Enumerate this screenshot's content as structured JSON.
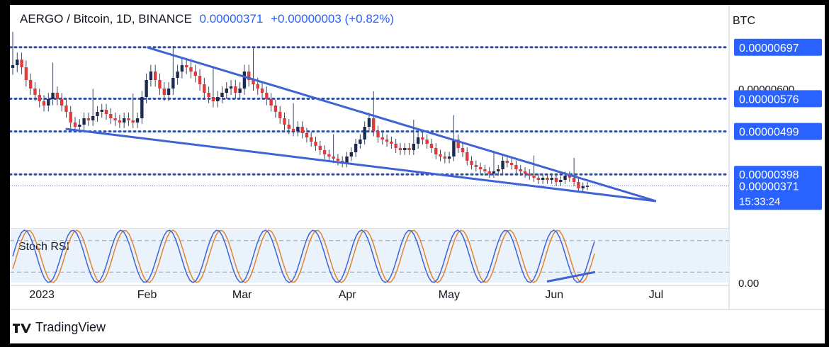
{
  "header": {
    "symbol": "AERGO / Bitcoin, 1D, BINANCE",
    "price": "0.00000371",
    "change": "+0.00000003 (+0.82%)"
  },
  "currency": "BTC",
  "brand": "TradingView",
  "chart_data": {
    "type": "candlestick",
    "x_tick_labels": [
      "2023",
      "Feb",
      "Mar",
      "Apr",
      "May",
      "Jun",
      "Jul"
    ],
    "x_tick_dates": [
      "2023-01-01",
      "2023-02-01",
      "2023-03-01",
      "2023-04-01",
      "2023-05-01",
      "2023-06-01",
      "2023-07-01"
    ],
    "y_axis_labels": [
      "0.00000600"
    ],
    "ylim": [
      2.8e-06,
      7.8e-06
    ],
    "horizontal_levels": [
      {
        "value": 6.97e-06,
        "label": "0.00000697"
      },
      {
        "value": 5.76e-06,
        "label": "0.00000576"
      },
      {
        "value": 4.99e-06,
        "label": "0.00000499"
      },
      {
        "value": 3.98e-06,
        "label": "0.00000398"
      }
    ],
    "last_price": {
      "value": 3.71e-06,
      "label": "0.00000371",
      "countdown": "15:33:24"
    },
    "trendlines": [
      {
        "from": [
          "2023-02-01",
          6.97e-06
        ],
        "to": [
          "2023-07-01",
          3.35e-06
        ]
      },
      {
        "from": [
          "2023-01-08",
          5.05e-06
        ],
        "to": [
          "2023-07-01",
          3.35e-06
        ]
      }
    ],
    "candles_close": [
      6.55e-06,
      6.68e-06,
      6.5e-06,
      6.2e-06,
      6e-06,
      5.85e-06,
      5.7e-06,
      5.6e-06,
      5.75e-06,
      5.9e-06,
      5.75e-06,
      5.6e-06,
      5.45e-06,
      5.2e-06,
      5.1e-06,
      5.15e-06,
      5.3e-06,
      5.25e-06,
      5.35e-06,
      5.45e-06,
      5.5e-06,
      5.4e-06,
      5.3e-06,
      5.25e-06,
      5.2e-06,
      5.3e-06,
      5.25e-06,
      5.2e-06,
      5.3e-06,
      5.8e-06,
      6.2e-06,
      6.4e-06,
      6.2e-06,
      6e-06,
      5.85e-06,
      6e-06,
      6.25e-06,
      6.4e-06,
      6.55e-06,
      6.5e-06,
      6.4e-06,
      6.3e-06,
      6.1e-06,
      5.9e-06,
      5.8e-06,
      5.7e-06,
      5.8e-06,
      5.9e-06,
      6e-06,
      6.05e-06,
      5.9e-06,
      6e-06,
      6.4e-06,
      6.2e-06,
      6.1e-06,
      6e-06,
      5.9e-06,
      5.75e-06,
      5.6e-06,
      5.45e-06,
      5.3e-06,
      5.15e-06,
      5.05e-06,
      5e-06,
      5.1e-06,
      4.95e-06,
      4.85e-06,
      4.75e-06,
      4.65e-06,
      4.55e-06,
      4.45e-06,
      4.4e-06,
      4.35e-06,
      4.3e-06,
      4.25e-06,
      4.4e-06,
      4.5e-06,
      4.7e-06,
      4.8e-06,
      5.1e-06,
      5.3e-06,
      5e-06,
      4.85e-06,
      4.8e-06,
      4.75e-06,
      4.7e-06,
      4.6e-06,
      4.55e-06,
      4.6e-06,
      4.55e-06,
      4.7e-06,
      4.85e-06,
      4.8e-06,
      4.7e-06,
      4.6e-06,
      4.45e-06,
      4.4e-06,
      4.35e-06,
      4.4e-06,
      4.8e-06,
      4.6e-06,
      4.5e-06,
      4.3e-06,
      4.2e-06,
      4.15e-06,
      4.1e-06,
      4.05e-06,
      4e-06,
      4.05e-06,
      4.1e-06,
      4.3e-06,
      4.25e-06,
      4.2e-06,
      4.1e-06,
      4.05e-06,
      4e-06,
      3.95e-06,
      3.9e-06,
      3.85e-06,
      3.9e-06,
      3.85e-06,
      3.9e-06,
      3.8e-06,
      3.85e-06,
      3.95e-06,
      3.9e-06,
      3.8e-06,
      3.65e-06,
      3.7e-06,
      3.71e-06
    ],
    "indicator": {
      "name": "Stoch RSI",
      "axis_label": "0.00",
      "bands": [
        80,
        20
      ]
    }
  }
}
